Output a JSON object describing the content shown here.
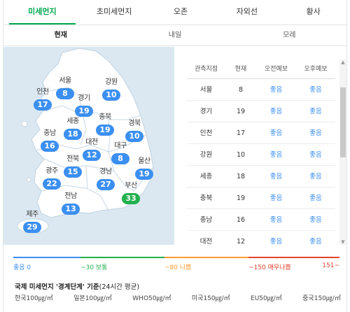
{
  "tabs": [
    "미세먼지",
    "초미세먼지",
    "오존",
    "자외선",
    "황사"
  ],
  "subtabs": [
    "현재",
    "내일",
    "모레"
  ],
  "map": {
    "cities": [
      {
        "name": "서울",
        "value": "8"
      },
      {
        "name": "강원",
        "value": "10"
      },
      {
        "name": "인천",
        "value": "17"
      },
      {
        "name": "경기",
        "value": "19"
      },
      {
        "name": "충북",
        "value": "19"
      },
      {
        "name": "세종",
        "value": "18"
      },
      {
        "name": "경북",
        "value": "10"
      },
      {
        "name": "충남",
        "value": "16"
      },
      {
        "name": "대전",
        "value": "12"
      },
      {
        "name": "대구",
        "value": "8"
      },
      {
        "name": "전북",
        "value": "15"
      },
      {
        "name": "울산",
        "value": "19"
      },
      {
        "name": "광주",
        "value": "22"
      },
      {
        "name": "경남",
        "value": "27"
      },
      {
        "name": "부산",
        "value": "33"
      },
      {
        "name": "전남",
        "value": "13"
      },
      {
        "name": "제주",
        "value": "29"
      }
    ]
  },
  "table": {
    "headers": [
      "관측지점",
      "현재",
      "오전예보",
      "오후예보"
    ],
    "rows": [
      [
        "서울",
        "8",
        "좋음",
        "좋음"
      ],
      [
        "경기",
        "19",
        "좋음",
        "좋음"
      ],
      [
        "인천",
        "17",
        "좋음",
        "좋음"
      ],
      [
        "강원",
        "10",
        "좋음",
        "좋음"
      ],
      [
        "세종",
        "18",
        "좋음",
        "좋음"
      ],
      [
        "충북",
        "19",
        "좋음",
        "좋음"
      ],
      [
        "충남",
        "16",
        "좋음",
        "좋음"
      ],
      [
        "대전",
        "12",
        "좋음",
        "좋음"
      ]
    ]
  },
  "legend": [
    {
      "label": "좋음 0",
      "color": "#3b8ff1"
    },
    {
      "label": "~30 보통",
      "color": "#22b14c"
    },
    {
      "label": "~80 나쁨",
      "color": "#ff9a2e"
    },
    {
      "label": "~150 매우나쁨",
      "color": "#e4432b"
    },
    {
      "label": "151~",
      "color": "#e4432b"
    }
  ],
  "note": {
    "title": "국제 미세먼지 '경계단계' 기준",
    "sub": "(24시간 평균)"
  },
  "standards": [
    "한국100㎍/㎥",
    "일본100㎍/㎥",
    "WHO50㎍/㎥",
    "미국150㎍/㎥",
    "EU50㎍/㎥",
    "중국150㎍/㎥"
  ],
  "colors": {
    "accent": "#03a94d",
    "good": "#3b8ff1",
    "normal": "#22b14c",
    "bad": "#ff9a2e",
    "very_bad": "#e4432b"
  }
}
